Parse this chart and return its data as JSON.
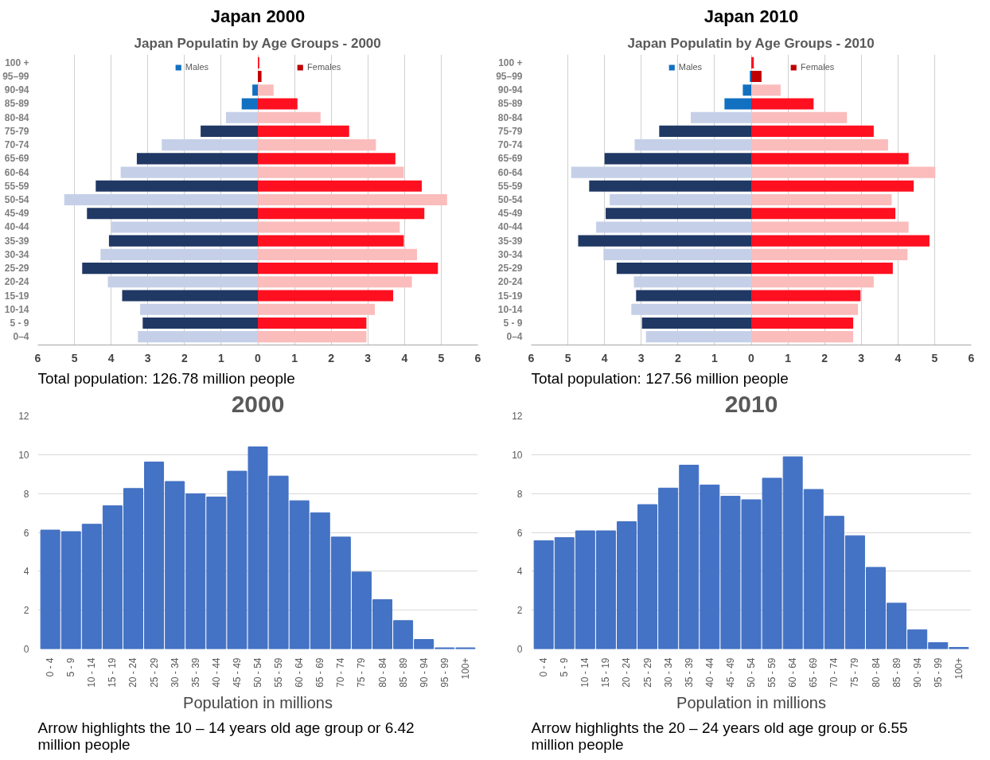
{
  "chart_data": [
    {
      "type": "bar",
      "orientation": "horizontal",
      "title": "Japan 2000",
      "subtitle": "Japan Populatin by Age Groups - 2000",
      "annotations": [
        "Total population: 126.78 million people"
      ],
      "categories": [
        "100 +",
        "95–99",
        "90-94",
        "85-89",
        "80-84",
        "75-79",
        "70-74",
        "65-69",
        "60-64",
        "55-59",
        "50-54",
        "45-49",
        "40-44",
        "35-39",
        "30-34",
        "25-29",
        "20-24",
        "15-19",
        "10-14",
        "5 - 9",
        "0–4"
      ],
      "series": [
        {
          "name": "Males",
          "color": "#1270c0",
          "values": [
            0,
            0,
            -0.15,
            -0.44,
            -0.87,
            -1.56,
            -2.62,
            -3.3,
            -3.74,
            -4.42,
            -5.28,
            -4.66,
            -3.99,
            -4.06,
            -4.29,
            -4.79,
            -4.09,
            -3.7,
            -3.21,
            -3.14,
            -3.27
          ],
          "colors": [
            "#1270c0",
            "#1270c0",
            "#1270c0",
            "#1270c0",
            "#c5d0e8",
            "#203864",
            "#c5d0e8",
            "#203864",
            "#c5d0e8",
            "#203864",
            "#c5d0e8",
            "#203864",
            "#c5d0e8",
            "#203864",
            "#c5d0e8",
            "#203864",
            "#c5d0e8",
            "#203864",
            "#c5d0e8",
            "#203864",
            "#c5d0e8"
          ]
        },
        {
          "name": "Females",
          "color": "#c00000",
          "values": [
            0.04,
            0.1,
            0.43,
            1.08,
            1.71,
            2.49,
            3.22,
            3.75,
            3.98,
            4.47,
            5.16,
            4.54,
            3.87,
            3.98,
            4.34,
            4.91,
            4.2,
            3.69,
            3.19,
            2.96,
            2.96
          ],
          "colors": [
            "#ff1020",
            "#c00000",
            "#fbbcbc",
            "#ff1020",
            "#fbbcbc",
            "#ff1020",
            "#fbbcbc",
            "#ff1020",
            "#fbbcbc",
            "#ff1020",
            "#fbbcbc",
            "#ff1020",
            "#fbbcbc",
            "#ff1020",
            "#fbbcbc",
            "#ff1020",
            "#fbbcbc",
            "#ff1020",
            "#fbbcbc",
            "#ff1020",
            "#fbbcbc"
          ]
        }
      ],
      "stacked": true,
      "xlim": [
        -6,
        6
      ],
      "xticks": [
        {
          "value": -6,
          "label": "6"
        },
        {
          "value": -5,
          "label": "5"
        },
        {
          "value": -4,
          "label": "4"
        },
        {
          "value": -3,
          "label": "3"
        },
        {
          "value": -2,
          "label": "2"
        },
        {
          "value": -1,
          "label": "1"
        },
        0,
        1,
        2,
        3,
        4,
        5,
        6
      ],
      "grid": "x",
      "legend": "top"
    },
    {
      "type": "bar",
      "orientation": "horizontal",
      "title": "Japan 2010",
      "subtitle": "Japan Populatin by Age Groups - 2010",
      "annotations": [
        "Total population: 127.56 million people"
      ],
      "categories": [
        "100 +",
        "95–99",
        "90-94",
        "85-89",
        "80-84",
        "75-79",
        "70-74",
        "65-69",
        "60-64",
        "55-59",
        "50-54",
        "45-49",
        "40-44",
        "35-39",
        "30-34",
        "25-29",
        "20-24",
        "15-19",
        "10-14",
        "5 - 9",
        "0–4"
      ],
      "series": [
        {
          "name": "Males",
          "color": "#1270c0",
          "values": [
            0,
            -0.04,
            -0.23,
            -0.73,
            -1.65,
            -2.51,
            -3.18,
            -4.0,
            -4.91,
            -4.42,
            -3.86,
            -3.97,
            -4.23,
            -4.72,
            -4.03,
            -3.67,
            -3.2,
            -3.14,
            -3.27,
            -2.98,
            -2.87
          ],
          "colors": [
            "#1270c0",
            "#1270c0",
            "#1270c0",
            "#1270c0",
            "#c5d0e8",
            "#203864",
            "#c5d0e8",
            "#203864",
            "#c5d0e8",
            "#203864",
            "#c5d0e8",
            "#203864",
            "#c5d0e8",
            "#203864",
            "#c5d0e8",
            "#203864",
            "#c5d0e8",
            "#203864",
            "#c5d0e8",
            "#203864",
            "#c5d0e8"
          ]
        },
        {
          "name": "Females",
          "color": "#c00000",
          "values": [
            0.07,
            0.28,
            0.8,
            1.7,
            2.61,
            3.34,
            3.73,
            4.29,
            5.02,
            4.43,
            3.83,
            3.93,
            4.29,
            4.86,
            4.26,
            3.86,
            3.34,
            2.98,
            2.91,
            2.78,
            2.78
          ],
          "colors": [
            "#ff1020",
            "#c00000",
            "#fbbcbc",
            "#ff1020",
            "#fbbcbc",
            "#ff1020",
            "#fbbcbc",
            "#ff1020",
            "#fbbcbc",
            "#ff1020",
            "#fbbcbc",
            "#ff1020",
            "#fbbcbc",
            "#ff1020",
            "#fbbcbc",
            "#ff1020",
            "#fbbcbc",
            "#ff1020",
            "#fbbcbc",
            "#ff1020",
            "#fbbcbc"
          ]
        }
      ],
      "stacked": true,
      "xlim": [
        -6,
        6
      ],
      "xticks": [
        {
          "value": -6,
          "label": "6"
        },
        {
          "value": -5,
          "label": "5"
        },
        {
          "value": -4,
          "label": "4"
        },
        {
          "value": -3,
          "label": "3"
        },
        {
          "value": -2,
          "label": "2"
        },
        {
          "value": -1,
          "label": "1"
        },
        0,
        1,
        2,
        3,
        4,
        5,
        6
      ],
      "grid": "x",
      "legend": "top"
    },
    {
      "type": "bar",
      "title": "2000",
      "xlabel": "Population in millions",
      "annotations": [
        "Arrow highlights the 10 – 14 years old age group or 6.42 million people"
      ],
      "categories": [
        "0 - 4",
        "5 - 9",
        "10 - 14",
        "15 - 19",
        "20 - 24",
        "25 - 29",
        "30 - 34",
        "35 - 39",
        "40 - 44",
        "45 - 49",
        "50 - 54",
        "55 - 59",
        "60 - 64",
        "65 - 69",
        "70 - 74",
        "75 - 79",
        "80 - 84",
        "85 - 89",
        "90 - 94",
        "95 - 99",
        "100+"
      ],
      "values": [
        6.12,
        6.04,
        6.42,
        7.37,
        8.26,
        9.62,
        8.62,
        7.99,
        7.82,
        9.15,
        10.4,
        8.9,
        7.63,
        7.01,
        5.76,
        3.96,
        2.54,
        1.46,
        0.49,
        0.06,
        0.06
      ],
      "color": "#4472c4",
      "ylim": [
        0,
        12
      ],
      "yticks": [
        0,
        2,
        4,
        6,
        8,
        10,
        12
      ],
      "grid": "y"
    },
    {
      "type": "bar",
      "title": "2010",
      "xlabel": "Population in millions",
      "annotations": [
        "Arrow highlights the 20 – 24 years old age group or 6.55 million people"
      ],
      "categories": [
        "0 - 4",
        "5 - 9",
        "10 - 14",
        "15 - 19",
        "20 - 24",
        "25 - 29",
        "30 - 34",
        "35 - 39",
        "40 - 44",
        "45 - 49",
        "50 - 54",
        "55 - 59",
        "60 - 64",
        "65 - 69",
        "70 - 74",
        "75 - 79",
        "80 - 84",
        "85 - 89",
        "90 - 94",
        "95 - 99",
        "100+"
      ],
      "values": [
        5.57,
        5.73,
        6.08,
        6.08,
        6.55,
        7.43,
        8.28,
        9.46,
        8.44,
        7.86,
        7.68,
        8.79,
        9.89,
        8.21,
        6.83,
        5.83,
        4.2,
        2.36,
        0.99,
        0.33,
        0.08
      ],
      "color": "#4472c4",
      "ylim": [
        0,
        12
      ],
      "yticks": [
        0,
        2,
        4,
        6,
        8,
        10,
        12
      ],
      "grid": "y"
    }
  ]
}
